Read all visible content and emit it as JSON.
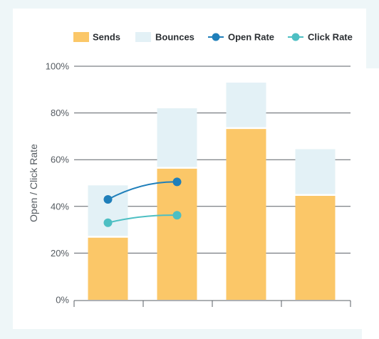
{
  "chart_data": {
    "type": "bar",
    "categories": [
      "",
      "",
      "",
      ""
    ],
    "series": [
      {
        "name": "Sends",
        "kind": "stacked-bar",
        "color": "#fbc768",
        "values": [
          27,
          56.5,
          73.5,
          44.9
        ]
      },
      {
        "name": "Bounces",
        "kind": "stacked-bar",
        "color": "#e3f1f6",
        "values": [
          22,
          25.5,
          19.5,
          19.6
        ]
      },
      {
        "name": "Open Rate",
        "kind": "line",
        "color": "#1f7fba",
        "values": [
          43,
          50.5,
          null,
          null
        ]
      },
      {
        "name": "Click Rate",
        "kind": "line",
        "color": "#4dbfc3",
        "values": [
          33,
          36.2,
          null,
          null
        ]
      }
    ],
    "ylabel": "Open / Click Rate",
    "xlabel": "",
    "ylim": [
      0,
      100
    ],
    "yticks": [
      "0%",
      "20%",
      "40%",
      "60%",
      "80%",
      "100%"
    ],
    "grid": true,
    "legend": "top"
  }
}
